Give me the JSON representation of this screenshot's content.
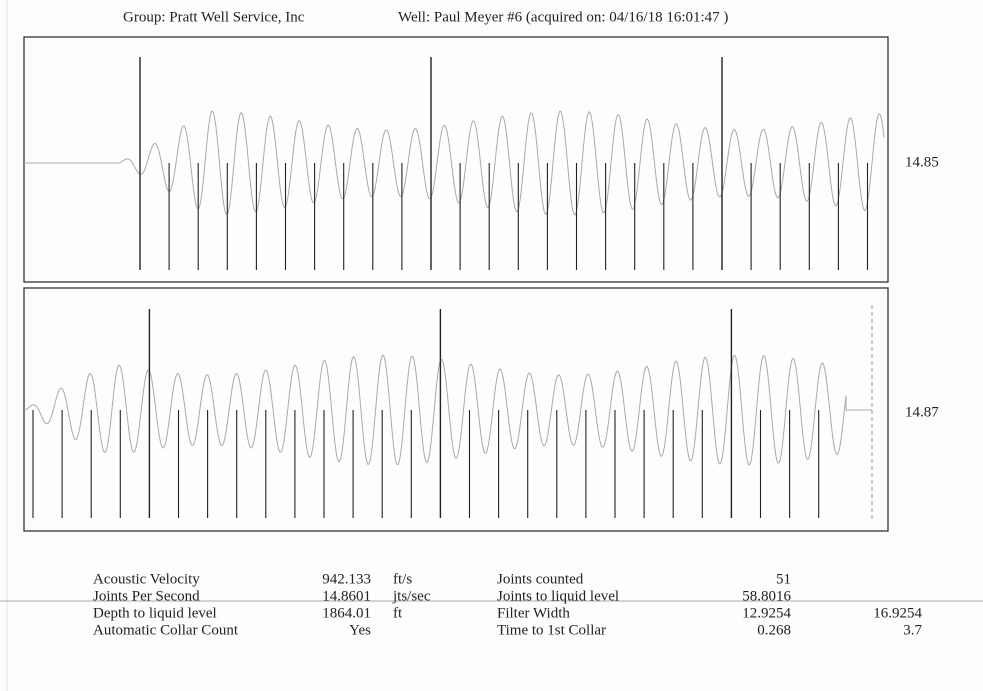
{
  "header": {
    "group": "Group: Pratt Well Service, Inc",
    "well": "Well: Paul Meyer #6 (acquired on: 04/16/18 16:01:47 )"
  },
  "panels": [
    {
      "label": "14.85"
    },
    {
      "label": "14.87"
    }
  ],
  "table": {
    "left": [
      {
        "label": "Acoustic Velocity",
        "value": "942.133",
        "unit": "ft/s"
      },
      {
        "label": "Joints Per Second",
        "value": "14.8601",
        "unit": "jts/sec"
      },
      {
        "label": "Depth to liquid level",
        "value": "1864.01",
        "unit": "ft"
      },
      {
        "label": "Automatic Collar Count",
        "value": "Yes"
      }
    ],
    "right": [
      {
        "label": "Joints counted",
        "value": "51"
      },
      {
        "label": "Joints to liquid level",
        "value": "58.8016"
      },
      {
        "label": "Filter Width",
        "value": "12.9254",
        "extra": "16.9254"
      },
      {
        "label": "Time to 1st Collar",
        "value": "0.268",
        "extra": "3.7"
      }
    ]
  }
}
